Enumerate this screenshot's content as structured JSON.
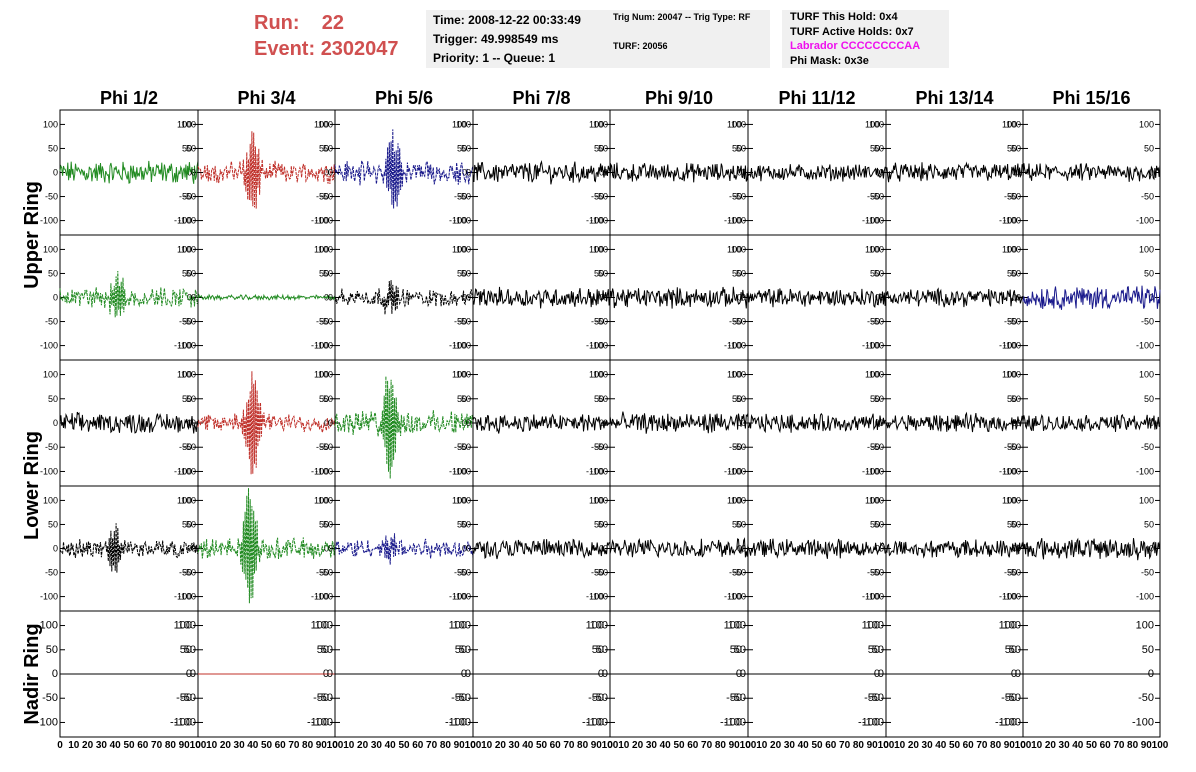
{
  "header": {
    "run_label": "Run:",
    "run_value": "22",
    "event_label": "Event:",
    "event_value": "2302047",
    "time": "Time: 2008-12-22 00:33:49",
    "trigger": "Trigger: 49.998549 ms",
    "priority": "Priority: 1 -- Queue: 1",
    "trig_num": "Trig Num: 20047 -- Trig Type: RF",
    "turf": "TURF: 20056",
    "turf_this_hold": "TURF This Hold: 0x4",
    "turf_active_holds": "TURF Active Holds: 0x7",
    "labrador": "Labrador CCCCCCCCAA",
    "phi_mask": "Phi Mask: 0x3e"
  },
  "colors": {
    "header_red": "#d05050",
    "labrador_magenta": "#ee10ee",
    "black": "#000000",
    "red": "#c0302a",
    "green": "#228b22",
    "blue": "#1a1a8c"
  },
  "chart_data": {
    "type": "line",
    "columns": [
      "Phi 1/2",
      "Phi 3/4",
      "Phi 5/6",
      "Phi 7/8",
      "Phi 9/10",
      "Phi 11/12",
      "Phi 13/14",
      "Phi 15/16"
    ],
    "rows": [
      "Upper Ring",
      "Upper Ring",
      "Lower Ring",
      "Lower Ring",
      "Nadir Ring"
    ],
    "row_labels": [
      {
        "text": "Upper Ring",
        "rows": [
          0,
          1
        ]
      },
      {
        "text": "Lower Ring",
        "rows": [
          2,
          3
        ]
      },
      {
        "text": "Nadir Ring",
        "rows": [
          4
        ]
      }
    ],
    "xlim": [
      0,
      100
    ],
    "ylim": [
      -130,
      130
    ],
    "y_ticks": [
      -100,
      -50,
      0,
      50,
      100
    ],
    "x_tick_labels": [
      "0",
      "10",
      "20",
      "30",
      "40",
      "50",
      "60",
      "70",
      "80",
      "90",
      "100"
    ],
    "panels": [
      [
        {
          "color": "green",
          "dash": false,
          "amp": 20,
          "burst": 0,
          "burstAt": 40
        },
        {
          "color": "red",
          "dash": true,
          "amp": 18,
          "burst": 85,
          "burstAt": 40
        },
        {
          "color": "blue",
          "dash": true,
          "amp": 20,
          "burst": 80,
          "burstAt": 42
        },
        {
          "color": "black",
          "dash": false,
          "amp": 18,
          "burst": 0,
          "burstAt": 40
        },
        {
          "color": "black",
          "dash": false,
          "amp": 16,
          "burst": 0,
          "burstAt": 40
        },
        {
          "color": "black",
          "dash": false,
          "amp": 14,
          "burst": 0,
          "burstAt": 40
        },
        {
          "color": "black",
          "dash": false,
          "amp": 16,
          "burst": 0,
          "burstAt": 40
        },
        {
          "color": "black",
          "dash": false,
          "amp": 15,
          "burst": 0,
          "burstAt": 40
        }
      ],
      [
        {
          "color": "green",
          "dash": true,
          "amp": 18,
          "burst": 50,
          "burstAt": 42
        },
        {
          "color": "green",
          "dash": false,
          "amp": 4,
          "burst": 0,
          "burstAt": 40
        },
        {
          "color": "black",
          "dash": true,
          "amp": 15,
          "burst": 28,
          "burstAt": 40
        },
        {
          "color": "black",
          "dash": false,
          "amp": 17,
          "burst": 0,
          "burstAt": 40
        },
        {
          "color": "black",
          "dash": false,
          "amp": 17,
          "burst": 0,
          "burstAt": 40
        },
        {
          "color": "black",
          "dash": false,
          "amp": 16,
          "burst": 0,
          "burstAt": 40
        },
        {
          "color": "black",
          "dash": false,
          "amp": 15,
          "burst": 0,
          "burstAt": 40
        },
        {
          "color": "blue",
          "dash": false,
          "amp": 20,
          "burst": 0,
          "burstAt": 40
        }
      ],
      [
        {
          "color": "black",
          "dash": false,
          "amp": 17,
          "burst": 0,
          "burstAt": 40
        },
        {
          "color": "red",
          "dash": true,
          "amp": 15,
          "burst": 110,
          "burstAt": 40
        },
        {
          "color": "green",
          "dash": true,
          "amp": 20,
          "burst": 120,
          "burstAt": 40
        },
        {
          "color": "black",
          "dash": false,
          "amp": 16,
          "burst": 0,
          "burstAt": 40
        },
        {
          "color": "black",
          "dash": false,
          "amp": 17,
          "burst": 0,
          "burstAt": 40
        },
        {
          "color": "black",
          "dash": false,
          "amp": 15,
          "burst": 0,
          "burstAt": 40
        },
        {
          "color": "black",
          "dash": false,
          "amp": 15,
          "burst": 0,
          "burstAt": 40
        },
        {
          "color": "black",
          "dash": false,
          "amp": 14,
          "burst": 0,
          "burstAt": 40
        }
      ],
      [
        {
          "color": "black",
          "dash": true,
          "amp": 15,
          "burst": 45,
          "burstAt": 40
        },
        {
          "color": "green",
          "dash": true,
          "amp": 18,
          "burst": 120,
          "burstAt": 38
        },
        {
          "color": "blue",
          "dash": true,
          "amp": 16,
          "burst": 25,
          "burstAt": 40
        },
        {
          "color": "black",
          "dash": false,
          "amp": 16,
          "burst": 0,
          "burstAt": 40
        },
        {
          "color": "black",
          "dash": false,
          "amp": 16,
          "burst": 0,
          "burstAt": 40
        },
        {
          "color": "black",
          "dash": false,
          "amp": 16,
          "burst": 0,
          "burstAt": 40
        },
        {
          "color": "black",
          "dash": false,
          "amp": 15,
          "burst": 0,
          "burstAt": 40
        },
        {
          "color": "black",
          "dash": false,
          "amp": 18,
          "burst": 0,
          "burstAt": 40
        }
      ],
      [
        {
          "color": "black",
          "dash": false,
          "amp": 0,
          "burst": 0,
          "burstAt": 40
        },
        {
          "color": "red",
          "dash": false,
          "amp": 0,
          "burst": 0,
          "burstAt": 40
        },
        {
          "color": "black",
          "dash": false,
          "amp": 0,
          "burst": 0,
          "burstAt": 40
        },
        {
          "color": "black",
          "dash": false,
          "amp": 0,
          "burst": 0,
          "burstAt": 40
        },
        {
          "color": "black",
          "dash": false,
          "amp": 0,
          "burst": 0,
          "burstAt": 40
        },
        {
          "color": "black",
          "dash": false,
          "amp": 0,
          "burst": 0,
          "burstAt": 40
        },
        {
          "color": "black",
          "dash": false,
          "amp": 0,
          "burst": 0,
          "burstAt": 40
        },
        {
          "color": "black",
          "dash": false,
          "amp": 0,
          "burst": 0,
          "burstAt": 40
        }
      ]
    ]
  }
}
